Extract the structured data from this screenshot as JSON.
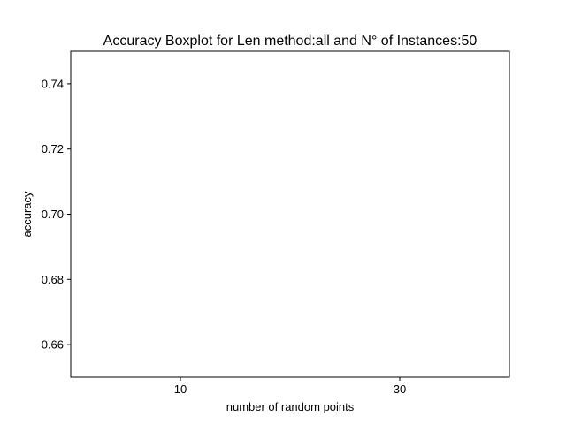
{
  "chart_data": {
    "type": "box",
    "title": "Accuracy Boxplot for Len method:all and N° of Instances:50",
    "xlabel": "number of random points",
    "ylabel": "accuracy",
    "categories": [
      "10",
      "30"
    ],
    "series": [],
    "ylim": [
      0.65,
      0.75
    ],
    "yticks": [
      0.66,
      0.68,
      0.7,
      0.72,
      0.74
    ],
    "ytick_labels": [
      "0.66",
      "0.68",
      "0.70",
      "0.72",
      "0.74"
    ],
    "grid": false,
    "legend": false,
    "colors": {
      "axis": "#000000",
      "background": "#ffffff"
    }
  }
}
